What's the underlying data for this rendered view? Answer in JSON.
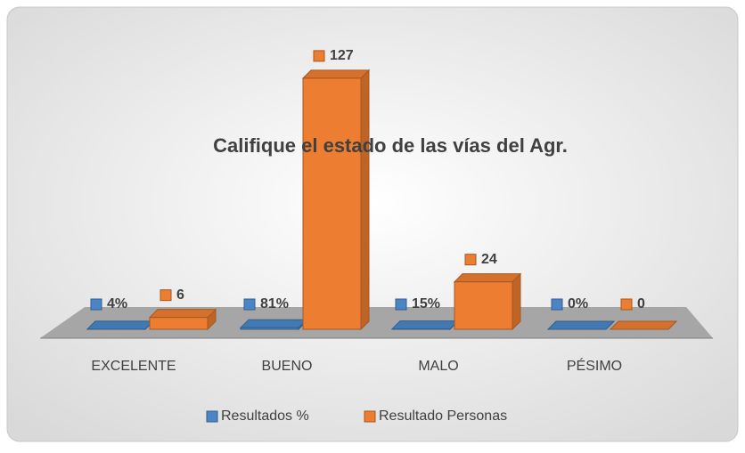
{
  "chart_data": {
    "type": "bar3d",
    "title": "Califique el estado de las vías del Agr.",
    "categories": [
      "EXCELENTE",
      "BUENO",
      "MALO",
      "PÉSIMO"
    ],
    "series": [
      {
        "name": "Resultados %",
        "color": "#4a86c6",
        "values": [
          0.04,
          0.81,
          0.15,
          0
        ],
        "value_labels": [
          "4%",
          "81%",
          "15%",
          "0%"
        ]
      },
      {
        "name": "Resultado Personas",
        "color": "#ed7d31",
        "values": [
          6,
          127,
          24,
          0
        ]
      }
    ],
    "ylim": [
      0,
      140
    ],
    "legend": "bottom"
  }
}
